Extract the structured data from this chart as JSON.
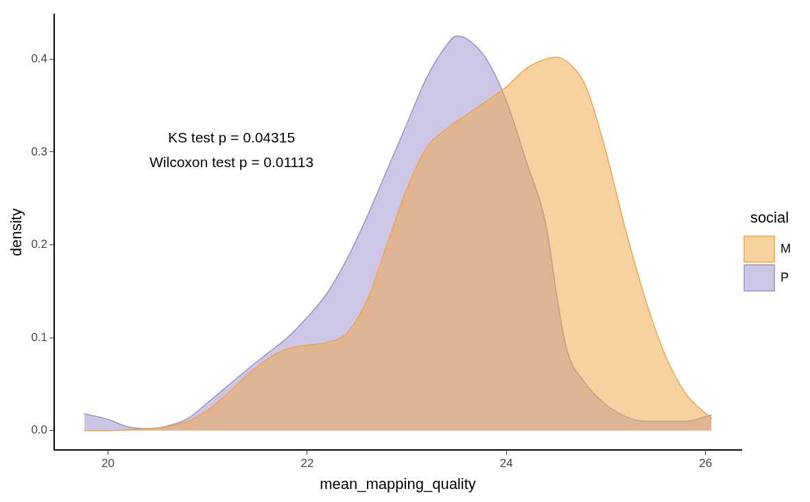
{
  "chart_data": {
    "type": "area",
    "xlabel": "mean_mapping_quality",
    "ylabel": "density",
    "legend_title": "social",
    "legend": "right",
    "grid": false,
    "x": [
      19.76,
      20.0,
      20.2,
      20.4,
      20.6,
      20.8,
      21.0,
      21.2,
      21.4,
      21.6,
      21.8,
      22.0,
      22.2,
      22.4,
      22.6,
      22.8,
      23.0,
      23.2,
      23.4,
      23.5,
      23.6,
      23.8,
      24.0,
      24.2,
      24.4,
      24.5,
      24.6,
      24.8,
      25.0,
      25.2,
      25.4,
      25.6,
      25.8,
      26.06
    ],
    "series": [
      {
        "name": "M",
        "color": "#f2a444",
        "values": [
          0.0,
          0.0,
          0.001,
          0.002,
          0.004,
          0.01,
          0.022,
          0.04,
          0.06,
          0.077,
          0.088,
          0.092,
          0.095,
          0.105,
          0.14,
          0.2,
          0.26,
          0.305,
          0.325,
          0.333,
          0.34,
          0.355,
          0.37,
          0.39,
          0.4,
          0.402,
          0.398,
          0.37,
          0.3,
          0.215,
          0.14,
          0.08,
          0.04,
          0.013
        ]
      },
      {
        "name": "P",
        "color": "#9c8fcb",
        "values": [
          0.018,
          0.012,
          0.004,
          0.002,
          0.005,
          0.013,
          0.03,
          0.048,
          0.066,
          0.083,
          0.1,
          0.122,
          0.148,
          0.185,
          0.23,
          0.28,
          0.33,
          0.38,
          0.415,
          0.425,
          0.422,
          0.4,
          0.355,
          0.29,
          0.22,
          0.15,
          0.09,
          0.05,
          0.028,
          0.015,
          0.01,
          0.01,
          0.01,
          0.017
        ]
      }
    ],
    "xlim": [
      19.46,
      26.36
    ],
    "xticks": [
      20,
      22,
      24,
      26
    ],
    "ylim": [
      -0.021,
      0.448
    ],
    "yticks": [
      {
        "value": 0,
        "label": "0.0"
      },
      {
        "value": 0.1,
        "label": "0.1"
      },
      {
        "value": 0.2,
        "label": "0.2"
      },
      {
        "value": 0.3,
        "label": "0.3"
      },
      {
        "value": 0.4,
        "label": "0.4"
      }
    ],
    "annotations": [
      "KS test p = 0.04315",
      "Wilcoxon test p = 0.01113"
    ]
  }
}
